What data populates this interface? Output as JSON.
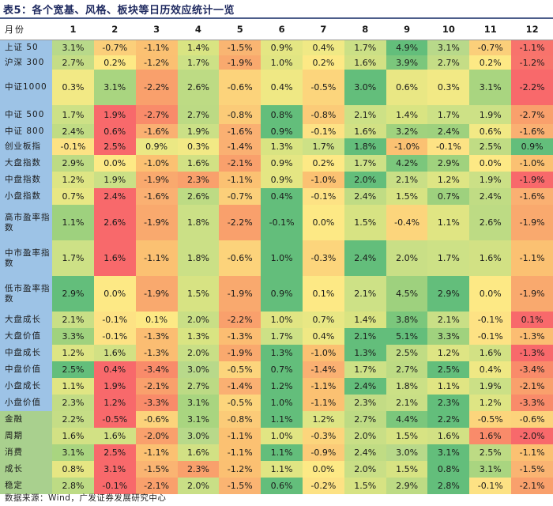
{
  "title": "表5：各个宽基、风格、板块等日历效应统计一览",
  "source": "数据来源：Wind，广发证券发展研究中心",
  "table": {
    "corner": "月份",
    "months": [
      "1",
      "2",
      "3",
      "4",
      "5",
      "6",
      "7",
      "8",
      "9",
      "10",
      "11",
      "12"
    ],
    "rows": [
      {
        "label": "上证 50",
        "values": [
          "3.1%",
          "-0.7%",
          "-1.1%",
          "1.4%",
          "-1.5%",
          "0.9%",
          "0.4%",
          "1.7%",
          "4.9%",
          "3.1%",
          "-0.7%",
          "-1.1%"
        ],
        "colors": [
          "#b8d98a",
          "#fbcf7a",
          "#fbc172",
          "#d9e482",
          "#f9b572",
          "#e4e683",
          "#f0e985",
          "#cbe086",
          "#63be7b",
          "#b8d98a",
          "#fbcf7a",
          "#f8736c"
        ]
      },
      {
        "label": "沪深 300",
        "values": [
          "2.7%",
          "0.2%",
          "-1.2%",
          "1.7%",
          "-1.9%",
          "1.0%",
          "0.2%",
          "1.6%",
          "3.9%",
          "2.7%",
          "0.2%",
          "-1.2%"
        ],
        "colors": [
          "#c5dd86",
          "#fde985",
          "#fbc072",
          "#cde186",
          "#f9a96e",
          "#e1e583",
          "#fde985",
          "#d2e184",
          "#7bc77c",
          "#c5dd86",
          "#fde985",
          "#f8756c"
        ]
      },
      {
        "label": "中证1000",
        "values": [
          "0.3%",
          "3.1%",
          "-2.2%",
          "2.6%",
          "-0.6%",
          "0.4%",
          "-0.5%",
          "3.0%",
          "0.6%",
          "0.3%",
          "3.1%",
          "-2.2%"
        ],
        "colors": [
          "#f2e985",
          "#a9d580",
          "#f9a06c",
          "#bddb84",
          "#fcd37b",
          "#efe884",
          "#fcd57c",
          "#63be7b",
          "#e9e784",
          "#f2e985",
          "#a9d580",
          "#f8696b"
        ]
      },
      {
        "label": "中证 500",
        "values": [
          "1.7%",
          "1.9%",
          "-2.7%",
          "2.7%",
          "-0.8%",
          "0.8%",
          "-0.8%",
          "2.1%",
          "1.4%",
          "1.7%",
          "1.9%",
          "-2.7%"
        ],
        "colors": [
          "#cde186",
          "#f8696b",
          "#f98b6a",
          "#bcda84",
          "#fbcb78",
          "#63be7b",
          "#fbcb78",
          "#cde186",
          "#d9e482",
          "#cde186",
          "#cde186",
          "#f9a06c"
        ]
      },
      {
        "label": "中证 800",
        "values": [
          "2.4%",
          "0.6%",
          "-1.6%",
          "1.9%",
          "-1.6%",
          "0.9%",
          "-0.1%",
          "1.6%",
          "3.2%",
          "2.4%",
          "0.6%",
          "-1.6%"
        ],
        "colors": [
          "#c0dc84",
          "#f8696b",
          "#fab072",
          "#cbe086",
          "#fab072",
          "#63be7b",
          "#fde284",
          "#d2e184",
          "#a0d27e",
          "#9ed17e",
          "#f2e985",
          "#fab072"
        ]
      },
      {
        "label": "创业板指",
        "values": [
          "-0.1%",
          "2.5%",
          "0.9%",
          "0.3%",
          "-1.4%",
          "1.3%",
          "1.7%",
          "1.8%",
          "-1.0%",
          "-0.1%",
          "2.5%",
          "0.9%"
        ],
        "colors": [
          "#fde284",
          "#f8696b",
          "#ebe884",
          "#f2e985",
          "#fab072",
          "#d9e482",
          "#cde186",
          "#63be7b",
          "#fbc172",
          "#fde284",
          "#c0dc84",
          "#63be7b"
        ]
      },
      {
        "label": "大盘指数",
        "values": [
          "2.9%",
          "0.0%",
          "-1.0%",
          "1.6%",
          "-2.1%",
          "0.9%",
          "0.2%",
          "1.7%",
          "4.2%",
          "2.9%",
          "0.0%",
          "-1.0%"
        ],
        "colors": [
          "#bddb84",
          "#fde985",
          "#fbc172",
          "#d2e184",
          "#f9a06c",
          "#e4e683",
          "#fde985",
          "#cde186",
          "#7bc77c",
          "#a0d27e",
          "#fde985",
          "#fbc172"
        ]
      },
      {
        "label": "中盘指数",
        "values": [
          "1.2%",
          "1.9%",
          "-1.9%",
          "2.3%",
          "-1.1%",
          "0.9%",
          "-1.0%",
          "2.0%",
          "2.1%",
          "1.2%",
          "1.9%",
          "-1.9%"
        ],
        "colors": [
          "#dee584",
          "#cbe086",
          "#f9a96e",
          "#f9a06c",
          "#fbc172",
          "#e4e683",
          "#fbc172",
          "#63be7b",
          "#c9df86",
          "#dee584",
          "#cbe086",
          "#f8696b"
        ]
      },
      {
        "label": "小盘指数",
        "values": [
          "0.7%",
          "2.4%",
          "-1.6%",
          "2.6%",
          "-0.7%",
          "0.4%",
          "-0.1%",
          "2.4%",
          "1.5%",
          "0.7%",
          "2.4%",
          "-1.6%"
        ],
        "colors": [
          "#e8e784",
          "#f8696b",
          "#fab072",
          "#bddb84",
          "#fbcf7a",
          "#63be7b",
          "#fde284",
          "#c0dc84",
          "#d7e383",
          "#9ed17e",
          "#c0dc84",
          "#fab072"
        ]
      },
      {
        "label": "高市盈率指数",
        "values": [
          "1.1%",
          "2.6%",
          "-1.9%",
          "1.8%",
          "-2.2%",
          "-0.1%",
          "0.0%",
          "1.5%",
          "-0.4%",
          "1.1%",
          "2.6%",
          "-1.9%"
        ],
        "colors": [
          "#9ed17e",
          "#f8696b",
          "#f9a96e",
          "#cbe086",
          "#f9a06c",
          "#63be7b",
          "#fde985",
          "#d7e383",
          "#fcd57c",
          "#e0e583",
          "#bddb84",
          "#f9a96e"
        ]
      },
      {
        "label": "中市盈率指数",
        "values": [
          "1.7%",
          "1.6%",
          "-1.1%",
          "1.8%",
          "-0.6%",
          "1.0%",
          "-0.3%",
          "2.4%",
          "2.0%",
          "1.7%",
          "1.6%",
          "-1.1%"
        ],
        "colors": [
          "#cde186",
          "#f8696b",
          "#fbc172",
          "#cbe086",
          "#fcd37b",
          "#63be7b",
          "#fcd57c",
          "#63be7b",
          "#c9df86",
          "#cde186",
          "#d2e184",
          "#fbc172"
        ]
      },
      {
        "label": "低市盈率指数",
        "values": [
          "2.9%",
          "0.0%",
          "-1.9%",
          "1.5%",
          "-1.9%",
          "0.9%",
          "0.1%",
          "2.1%",
          "4.5%",
          "2.9%",
          "0.0%",
          "-1.9%"
        ],
        "colors": [
          "#63be7b",
          "#fde985",
          "#f9a96e",
          "#d7e383",
          "#f9a96e",
          "#63be7b",
          "#fde985",
          "#cde186",
          "#9ed17e",
          "#63be7b",
          "#fde985",
          "#f9a96e"
        ]
      },
      {
        "label": "大盘成长",
        "values": [
          "2.1%",
          "-0.1%",
          "0.1%",
          "2.0%",
          "-2.2%",
          "1.0%",
          "0.7%",
          "1.4%",
          "3.8%",
          "2.1%",
          "-0.1%",
          "0.1%"
        ],
        "colors": [
          "#c9df86",
          "#fde284",
          "#fde985",
          "#c9df86",
          "#f9a06c",
          "#e1e583",
          "#e8e784",
          "#d9e482",
          "#7bc77c",
          "#c9df86",
          "#fde284",
          "#f8696b"
        ]
      },
      {
        "label": "大盘价值",
        "values": [
          "3.3%",
          "-0.1%",
          "-1.3%",
          "1.3%",
          "-1.3%",
          "1.7%",
          "0.4%",
          "2.1%",
          "5.1%",
          "3.3%",
          "-0.1%",
          "-1.3%"
        ],
        "colors": [
          "#a0d27e",
          "#fde284",
          "#fbbd72",
          "#d9e482",
          "#fbbd72",
          "#cde186",
          "#efe884",
          "#63be7b",
          "#63be7b",
          "#a0d27e",
          "#fde284",
          "#fbbd72"
        ]
      },
      {
        "label": "中盘成长",
        "values": [
          "1.2%",
          "1.6%",
          "-1.3%",
          "2.0%",
          "-1.9%",
          "1.3%",
          "-1.0%",
          "1.3%",
          "2.5%",
          "1.2%",
          "1.6%",
          "-1.3%"
        ],
        "colors": [
          "#dee584",
          "#d2e184",
          "#fbbd72",
          "#c9df86",
          "#f9a96e",
          "#63be7b",
          "#fbc172",
          "#63be7b",
          "#c0dc84",
          "#dee584",
          "#d2e184",
          "#f8696b"
        ]
      },
      {
        "label": "中盘价值",
        "values": [
          "2.5%",
          "0.4%",
          "-3.4%",
          "3.0%",
          "-0.5%",
          "0.7%",
          "-1.4%",
          "1.7%",
          "2.7%",
          "2.5%",
          "0.4%",
          "-3.4%"
        ],
        "colors": [
          "#63be7b",
          "#f8696b",
          "#f98b6a",
          "#b8d98a",
          "#fcd57c",
          "#63be7b",
          "#fab072",
          "#cde186",
          "#bddb84",
          "#63be7b",
          "#efe884",
          "#f98b6a"
        ]
      },
      {
        "label": "小盘成长",
        "values": [
          "1.1%",
          "1.9%",
          "-2.1%",
          "2.7%",
          "-1.4%",
          "1.2%",
          "-1.1%",
          "2.4%",
          "1.8%",
          "1.1%",
          "1.9%",
          "-2.1%"
        ],
        "colors": [
          "#e0e583",
          "#f8696b",
          "#f9a06c",
          "#bcda84",
          "#fab072",
          "#63be7b",
          "#fbc172",
          "#63be7b",
          "#cbe086",
          "#e0e583",
          "#cbe086",
          "#f9a06c"
        ]
      },
      {
        "label": "小盘价值",
        "values": [
          "2.3%",
          "1.2%",
          "-3.3%",
          "3.1%",
          "-0.5%",
          "1.0%",
          "-1.1%",
          "2.3%",
          "2.1%",
          "2.3%",
          "1.2%",
          "-3.3%"
        ],
        "colors": [
          "#c3dc85",
          "#f8696b",
          "#f98b6a",
          "#a9d580",
          "#fcd57c",
          "#63be7b",
          "#fbc172",
          "#c3dc85",
          "#c9df86",
          "#63be7b",
          "#dee584",
          "#f98b6a"
        ]
      },
      {
        "label": "金融",
        "values": [
          "2.2%",
          "-0.5%",
          "-0.6%",
          "3.1%",
          "-0.8%",
          "1.1%",
          "1.2%",
          "2.7%",
          "4.4%",
          "2.2%",
          "-0.5%",
          "-0.6%"
        ],
        "colors": [
          "#c5dd86",
          "#f8696b",
          "#fcd37b",
          "#a9d580",
          "#fbcb78",
          "#63be7b",
          "#dee584",
          "#bddb84",
          "#7bc77c",
          "#63be7b",
          "#fcd57c",
          "#fcd37b"
        ]
      },
      {
        "label": "周期",
        "values": [
          "1.6%",
          "1.6%",
          "-2.0%",
          "3.0%",
          "-1.1%",
          "1.0%",
          "-0.3%",
          "2.0%",
          "1.5%",
          "1.6%",
          "1.6%",
          "-2.0%"
        ],
        "colors": [
          "#d2e184",
          "#d2e184",
          "#f9a06c",
          "#b8d98a",
          "#fbc172",
          "#e1e583",
          "#fcd57c",
          "#c9df86",
          "#d7e383",
          "#d2e184",
          "#f98b6a",
          "#f8696b"
        ]
      },
      {
        "label": "消费",
        "values": [
          "3.1%",
          "2.5%",
          "-1.1%",
          "1.6%",
          "-1.1%",
          "1.1%",
          "-0.9%",
          "2.4%",
          "3.0%",
          "3.1%",
          "2.5%",
          "-1.1%"
        ],
        "colors": [
          "#a9d580",
          "#f8696b",
          "#fbc172",
          "#d2e184",
          "#fbc172",
          "#63be7b",
          "#fbcb78",
          "#c0dc84",
          "#b8d98a",
          "#63be7b",
          "#bddb84",
          "#fbc172"
        ]
      },
      {
        "label": "成长",
        "values": [
          "0.8%",
          "3.1%",
          "-1.5%",
          "2.3%",
          "-1.2%",
          "1.1%",
          "0.0%",
          "2.0%",
          "1.5%",
          "0.8%",
          "3.1%",
          "-1.5%"
        ],
        "colors": [
          "#e6e683",
          "#f8696b",
          "#fab472",
          "#f9a06c",
          "#fbc072",
          "#e0e583",
          "#fde985",
          "#c9df86",
          "#d7e383",
          "#63be7b",
          "#a9d580",
          "#fab472"
        ]
      },
      {
        "label": "稳定",
        "values": [
          "2.8%",
          "-0.1%",
          "-2.1%",
          "2.0%",
          "-1.5%",
          "0.6%",
          "-0.2%",
          "1.5%",
          "2.9%",
          "2.8%",
          "-0.1%",
          "-2.1%"
        ],
        "colors": [
          "#bddb84",
          "#f8696b",
          "#f9a06c",
          "#c9df86",
          "#fab472",
          "#63be7b",
          "#fde284",
          "#d7e383",
          "#bddb84",
          "#63be7b",
          "#fde284",
          "#f9a06c"
        ]
      }
    ]
  }
}
